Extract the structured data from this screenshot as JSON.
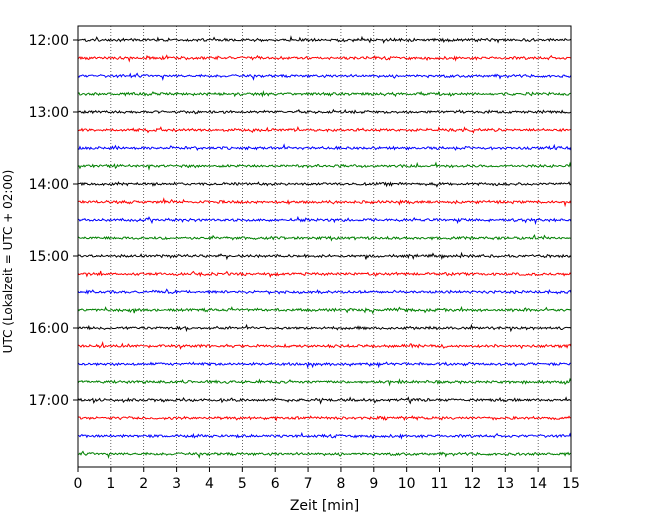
{
  "chart_data": {
    "type": "line",
    "title": "",
    "xlabel": "Zeit  [min]",
    "ylabel": "UTC (Lokalzeit = UTC + 02:00)",
    "xlim": [
      0,
      15
    ],
    "x_ticks": [
      0,
      1,
      2,
      3,
      4,
      5,
      6,
      7,
      8,
      9,
      10,
      11,
      12,
      13,
      14,
      15
    ],
    "x_tick_labels": [
      "0",
      "1",
      "2",
      "3",
      "4",
      "5",
      "6",
      "7",
      "8",
      "9",
      "10",
      "11",
      "12",
      "13",
      "14",
      "15"
    ],
    "y_tick_labels": [
      "12:00",
      "13:00",
      "14:00",
      "15:00",
      "16:00",
      "17:00"
    ],
    "grid": {
      "x": true,
      "y": false,
      "style": "dotted"
    },
    "trace_interval_minutes": 15,
    "trace_amplitude": "low",
    "traces": [
      {
        "start": "12:00",
        "color": "#000000"
      },
      {
        "start": "12:15",
        "color": "#ff0000"
      },
      {
        "start": "12:30",
        "color": "#0000ff"
      },
      {
        "start": "12:45",
        "color": "#008000"
      },
      {
        "start": "13:00",
        "color": "#000000"
      },
      {
        "start": "13:15",
        "color": "#ff0000"
      },
      {
        "start": "13:30",
        "color": "#0000ff"
      },
      {
        "start": "13:45",
        "color": "#008000"
      },
      {
        "start": "14:00",
        "color": "#000000"
      },
      {
        "start": "14:15",
        "color": "#ff0000"
      },
      {
        "start": "14:30",
        "color": "#0000ff"
      },
      {
        "start": "14:45",
        "color": "#008000"
      },
      {
        "start": "15:00",
        "color": "#000000"
      },
      {
        "start": "15:15",
        "color": "#ff0000"
      },
      {
        "start": "15:30",
        "color": "#0000ff"
      },
      {
        "start": "15:45",
        "color": "#008000"
      },
      {
        "start": "16:00",
        "color": "#000000"
      },
      {
        "start": "16:15",
        "color": "#ff0000"
      },
      {
        "start": "16:30",
        "color": "#0000ff"
      },
      {
        "start": "16:45",
        "color": "#008000"
      },
      {
        "start": "17:00",
        "color": "#000000"
      },
      {
        "start": "17:15",
        "color": "#ff0000"
      },
      {
        "start": "17:30",
        "color": "#0000ff"
      },
      {
        "start": "17:45",
        "color": "#008000"
      }
    ]
  }
}
